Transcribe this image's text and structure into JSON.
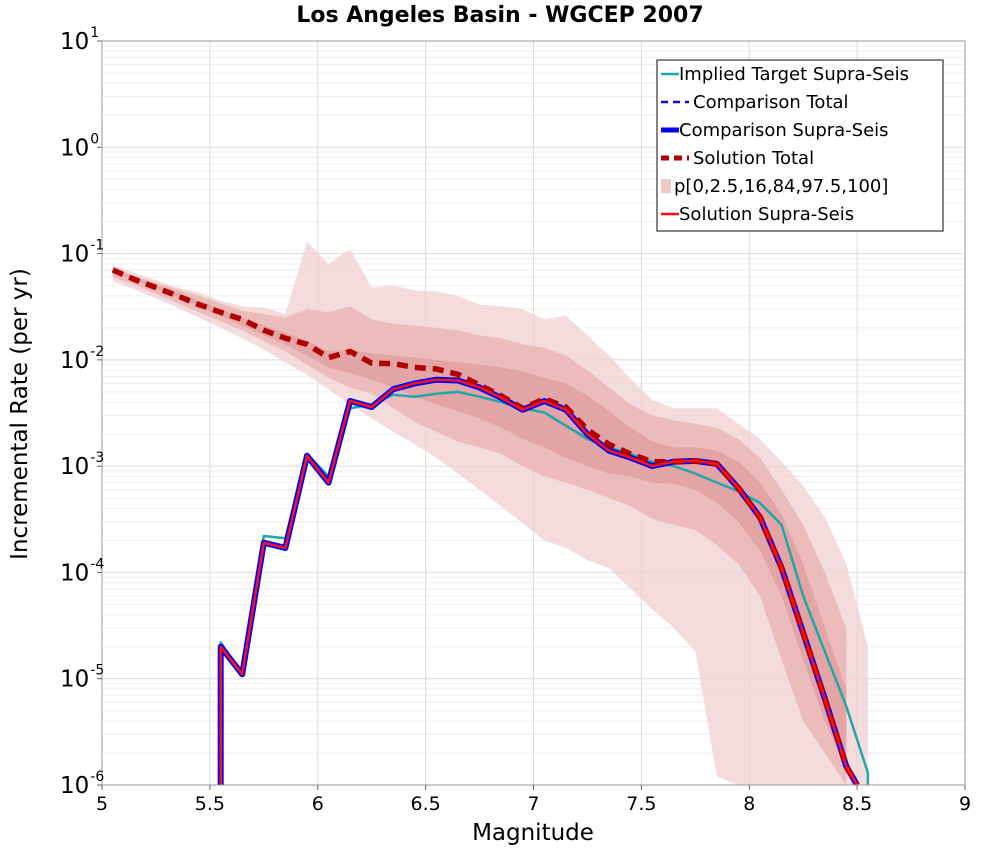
{
  "chart_data": {
    "type": "line",
    "title": "Los Angeles Basin - WGCEP 2007",
    "xlabel": "Magnitude",
    "ylabel": "Incremental Rate (per yr)",
    "xlim": [
      5,
      9
    ],
    "ylim_log10": [
      -6,
      1
    ],
    "y_scale": "log",
    "x_ticks": [
      "5",
      "5.5",
      "6",
      "6.5",
      "7",
      "7.5",
      "8",
      "8.5",
      "9"
    ],
    "y_ticks": [
      {
        "base": "10",
        "exp": "1"
      },
      {
        "base": "10",
        "exp": "0"
      },
      {
        "base": "10",
        "exp": "-1"
      },
      {
        "base": "10",
        "exp": "-2"
      },
      {
        "base": "10",
        "exp": "-3"
      },
      {
        "base": "10",
        "exp": "-4"
      },
      {
        "base": "10",
        "exp": "-5"
      },
      {
        "base": "10",
        "exp": "-6"
      }
    ],
    "grid": true,
    "legend_position": "top-right",
    "legend": [
      {
        "label": "Implied Target Supra-Seis",
        "style": "solid",
        "color": "#20a8a8"
      },
      {
        "label": "Comparison Total",
        "style": "dashed",
        "color": "#1010c8"
      },
      {
        "label": "Comparison Supra-Seis",
        "style": "solid-thick",
        "color": "#0000ff"
      },
      {
        "label": "Solution Total",
        "style": "dashed-thick",
        "color": "#b00000"
      },
      {
        "label": "p[0,2.5,16,84,97.5,100]",
        "style": "band",
        "color": "#f0c8c8"
      },
      {
        "label": "Solution Supra-Seis",
        "style": "solid",
        "color": "#ff1010"
      }
    ],
    "bands": [
      {
        "name": "p0-p100",
        "color": "#f0d0d0",
        "x": [
          5.05,
          5.15,
          5.25,
          5.35,
          5.45,
          5.55,
          5.65,
          5.75,
          5.85,
          5.95,
          6.05,
          6.15,
          6.25,
          6.35,
          6.45,
          6.55,
          6.65,
          6.75,
          6.85,
          6.95,
          7.05,
          7.15,
          7.25,
          7.35,
          7.45,
          7.55,
          7.65,
          7.75,
          7.85,
          7.95,
          8.05,
          8.15,
          8.25,
          8.35,
          8.45,
          8.55
        ],
        "lower": [
          0.055,
          0.046,
          0.038,
          0.031,
          0.025,
          0.02,
          0.016,
          0.0125,
          0.0095,
          0.0072,
          0.0053,
          0.0038,
          0.0028,
          0.0021,
          0.0016,
          0.0012,
          0.00085,
          0.0006,
          0.00042,
          0.00029,
          0.0002,
          0.00017,
          0.00013,
          0.00011,
          7e-05,
          4.5e-05,
          3e-05,
          1.8e-05,
          1.2e-06,
          1e-06,
          1e-06,
          1e-06,
          1e-06,
          1e-06,
          1e-06,
          1e-06
        ],
        "upper": [
          0.078,
          0.066,
          0.056,
          0.048,
          0.043,
          0.036,
          0.032,
          0.031,
          0.027,
          0.13,
          0.08,
          0.11,
          0.048,
          0.05,
          0.045,
          0.044,
          0.04,
          0.033,
          0.032,
          0.03,
          0.024,
          0.026,
          0.017,
          0.011,
          0.0066,
          0.0042,
          0.0035,
          0.0035,
          0.0035,
          0.0025,
          0.0018,
          0.0011,
          0.00065,
          0.00033,
          0.00012,
          2e-05
        ]
      },
      {
        "name": "p2.5-p97.5",
        "color": "#e9b2b2",
        "x": [
          5.05,
          5.15,
          5.25,
          5.35,
          5.45,
          5.55,
          5.65,
          5.75,
          5.85,
          5.95,
          6.05,
          6.15,
          6.25,
          6.35,
          6.45,
          6.55,
          6.65,
          6.75,
          6.85,
          6.95,
          7.05,
          7.15,
          7.25,
          7.35,
          7.45,
          7.55,
          7.65,
          7.75,
          7.85,
          7.95,
          8.05,
          8.15,
          8.25,
          8.35,
          8.45
        ],
        "lower": [
          0.06,
          0.051,
          0.042,
          0.034,
          0.028,
          0.023,
          0.019,
          0.015,
          0.012,
          0.009,
          0.0068,
          0.0055,
          0.0048,
          0.0035,
          0.0026,
          0.0021,
          0.0017,
          0.0015,
          0.0013,
          0.001,
          0.0008,
          0.0007,
          0.0006,
          0.0005,
          0.00042,
          0.00032,
          0.00028,
          0.00025,
          0.00018,
          0.00012,
          6e-05,
          1.5e-05,
          4e-06,
          2e-06,
          1e-06
        ],
        "upper": [
          0.074,
          0.062,
          0.053,
          0.046,
          0.04,
          0.034,
          0.029,
          0.027,
          0.025,
          0.03,
          0.028,
          0.032,
          0.024,
          0.022,
          0.021,
          0.02,
          0.019,
          0.017,
          0.016,
          0.014,
          0.013,
          0.011,
          0.008,
          0.0055,
          0.0038,
          0.003,
          0.0027,
          0.0025,
          0.0023,
          0.0018,
          0.0012,
          0.0006,
          0.00028,
          0.0001,
          3e-05
        ]
      },
      {
        "name": "p16-p84",
        "color": "#df9c9c",
        "x": [
          5.05,
          5.15,
          5.25,
          5.35,
          5.45,
          5.55,
          5.65,
          5.75,
          5.85,
          5.95,
          6.05,
          6.15,
          6.25,
          6.35,
          6.45,
          6.55,
          6.65,
          6.75,
          6.85,
          6.95,
          7.05,
          7.15,
          7.25,
          7.35,
          7.45,
          7.55,
          7.65,
          7.75,
          7.85,
          7.95,
          8.05,
          8.15,
          8.25,
          8.35,
          8.45
        ],
        "lower": [
          0.067,
          0.057,
          0.047,
          0.039,
          0.032,
          0.026,
          0.021,
          0.017,
          0.014,
          0.011,
          0.0085,
          0.0075,
          0.0065,
          0.0055,
          0.0045,
          0.0038,
          0.0033,
          0.0028,
          0.0023,
          0.0018,
          0.0015,
          0.0012,
          0.001,
          0.00085,
          0.0008,
          0.0007,
          0.00068,
          0.0006,
          0.00045,
          0.0003,
          0.00016,
          6e-05,
          1.5e-05,
          4e-06,
          1.5e-06
        ],
        "upper": [
          0.07,
          0.06,
          0.05,
          0.043,
          0.036,
          0.03,
          0.025,
          0.021,
          0.018,
          0.015,
          0.012,
          0.0125,
          0.0115,
          0.011,
          0.0105,
          0.01,
          0.0095,
          0.009,
          0.0085,
          0.0078,
          0.0068,
          0.006,
          0.0046,
          0.0033,
          0.0023,
          0.0017,
          0.0015,
          0.0015,
          0.0014,
          0.0011,
          0.0007,
          0.00035,
          0.00012,
          3e-05,
          8e-06
        ]
      }
    ],
    "series": [
      {
        "name": "Implied Target Supra-Seis",
        "color": "#20a8a8",
        "x": [
          5.55,
          5.55,
          5.65,
          5.75,
          5.85,
          5.95,
          6.05,
          6.15,
          6.25,
          6.35,
          6.45,
          6.55,
          6.65,
          6.75,
          6.85,
          6.95,
          7.05,
          7.15,
          7.25,
          7.35,
          7.45,
          7.55,
          7.65,
          7.75,
          7.85,
          7.95,
          8.05,
          8.15,
          8.25,
          8.35,
          8.45,
          8.55,
          8.55
        ],
        "y": [
          1e-06,
          2.2e-05,
          1.1e-05,
          0.00022,
          0.00021,
          0.0013,
          0.0008,
          0.0035,
          0.0038,
          0.0047,
          0.0045,
          0.0048,
          0.005,
          0.0045,
          0.004,
          0.0035,
          0.0032,
          0.0024,
          0.0018,
          0.0015,
          0.0013,
          0.0011,
          0.001,
          0.00085,
          0.0007,
          0.00058,
          0.00045,
          0.00028,
          6e-05,
          1.8e-05,
          5.5e-06,
          1.3e-06,
          1e-06
        ]
      },
      {
        "name": "Comparison Total",
        "color": "#1010c8",
        "x": [
          5.55,
          5.55,
          5.65,
          5.75,
          5.85,
          5.95,
          6.05,
          6.15,
          6.25,
          6.35,
          6.45,
          6.55,
          6.65,
          6.75,
          6.85,
          6.95,
          7.05,
          7.15,
          7.25,
          7.35,
          7.45,
          7.55,
          7.65,
          7.75,
          7.85,
          7.95,
          8.05,
          8.15,
          8.25,
          8.35,
          8.45,
          8.5
        ],
        "y": [
          1e-06,
          2e-05,
          1.1e-05,
          0.00019,
          0.00017,
          0.00125,
          0.0007,
          0.0041,
          0.0036,
          0.0053,
          0.006,
          0.0065,
          0.0064,
          0.0055,
          0.0044,
          0.0034,
          0.0041,
          0.0034,
          0.002,
          0.0014,
          0.0012,
          0.001,
          0.0011,
          0.00112,
          0.00105,
          0.00062,
          0.00033,
          0.00011,
          2.7e-05,
          6.5e-06,
          1.5e-06,
          1e-06
        ]
      },
      {
        "name": "Comparison Supra-Seis",
        "color": "#0000ff",
        "x": [
          5.55,
          5.55,
          5.65,
          5.75,
          5.85,
          5.95,
          6.05,
          6.15,
          6.25,
          6.35,
          6.45,
          6.55,
          6.65,
          6.75,
          6.85,
          6.95,
          7.05,
          7.15,
          7.25,
          7.35,
          7.45,
          7.55,
          7.65,
          7.75,
          7.85,
          7.95,
          8.05,
          8.15,
          8.25,
          8.35,
          8.45,
          8.5
        ],
        "y": [
          1e-06,
          2e-05,
          1.1e-05,
          0.00019,
          0.00017,
          0.00125,
          0.0007,
          0.0041,
          0.0036,
          0.0053,
          0.006,
          0.0065,
          0.0064,
          0.0055,
          0.0044,
          0.0034,
          0.0041,
          0.0034,
          0.002,
          0.0014,
          0.0012,
          0.001,
          0.0011,
          0.00112,
          0.00105,
          0.00062,
          0.00033,
          0.00011,
          2.7e-05,
          6.5e-06,
          1.5e-06,
          1e-06
        ]
      },
      {
        "name": "Solution Total",
        "color": "#b00000",
        "x": [
          5.05,
          5.15,
          5.25,
          5.35,
          5.45,
          5.55,
          5.65,
          5.75,
          5.85,
          5.95,
          6.05,
          6.15,
          6.25,
          6.35,
          6.45,
          6.55,
          6.65,
          6.75,
          6.85,
          6.95,
          7.05,
          7.15,
          7.25,
          7.35,
          7.45,
          7.55,
          7.65,
          7.75,
          7.85,
          7.95,
          8.05,
          8.15,
          8.25,
          8.35,
          8.45,
          8.5
        ],
        "y": [
          0.07,
          0.057,
          0.048,
          0.04,
          0.033,
          0.028,
          0.024,
          0.019,
          0.016,
          0.014,
          0.0105,
          0.012,
          0.0093,
          0.0092,
          0.0085,
          0.0082,
          0.0073,
          0.0058,
          0.0046,
          0.0035,
          0.0043,
          0.0036,
          0.0022,
          0.0016,
          0.0013,
          0.0011,
          0.0011,
          0.00112,
          0.00105,
          0.00062,
          0.00033,
          0.00011,
          2.7e-05,
          6.5e-06,
          1.5e-06,
          1e-06
        ]
      },
      {
        "name": "Solution Supra-Seis",
        "color": "#ff1010",
        "x": [
          5.55,
          5.55,
          5.65,
          5.75,
          5.85,
          5.95,
          6.05,
          6.15,
          6.25,
          6.35,
          6.45,
          6.55,
          6.65,
          6.75,
          6.85,
          6.95,
          7.05,
          7.15,
          7.25,
          7.35,
          7.45,
          7.55,
          7.65,
          7.75,
          7.85,
          7.95,
          8.05,
          8.15,
          8.25,
          8.35,
          8.45,
          8.5
        ],
        "y": [
          1e-06,
          2e-05,
          1.1e-05,
          0.00019,
          0.00017,
          0.00125,
          0.0007,
          0.0041,
          0.0036,
          0.0053,
          0.006,
          0.0065,
          0.0064,
          0.0055,
          0.0044,
          0.0034,
          0.0041,
          0.0034,
          0.002,
          0.0014,
          0.0012,
          0.001,
          0.0011,
          0.00112,
          0.00105,
          0.00062,
          0.00033,
          0.00011,
          2.7e-05,
          6.5e-06,
          1.5e-06,
          1e-06
        ]
      }
    ]
  }
}
